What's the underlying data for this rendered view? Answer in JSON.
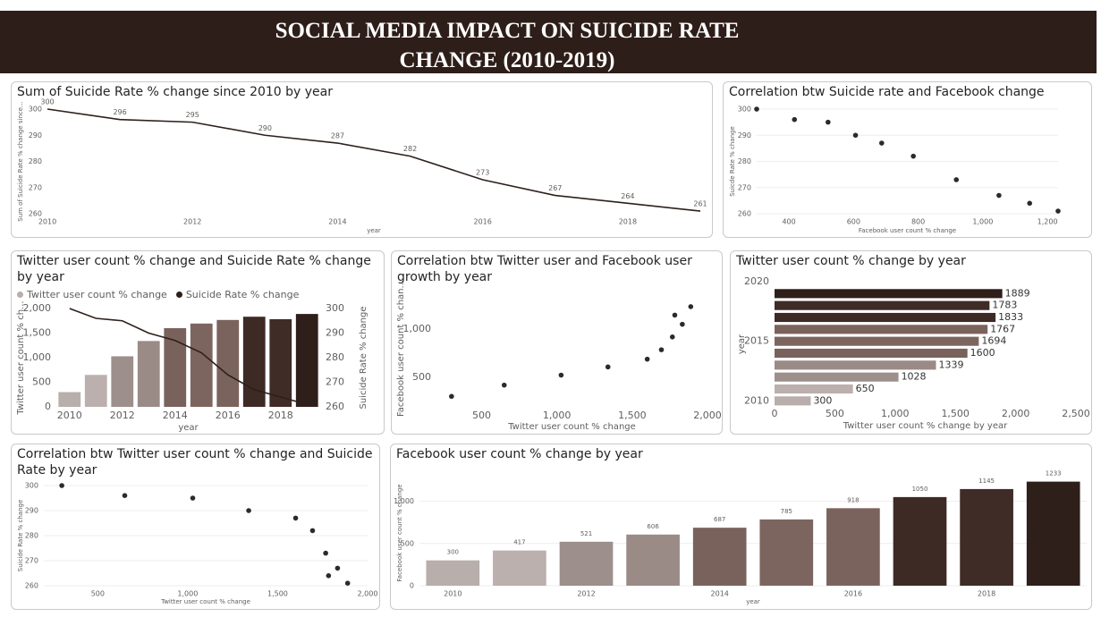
{
  "header": {
    "title": "SOCIAL MEDIA IMPACT ON SUICIDE RATE CHANGE (2010-2019)"
  },
  "chart_data": [
    {
      "type": "line",
      "title": "Sum of Suicide Rate % change since 2010 by year",
      "x": [
        2010,
        2011,
        2012,
        2013,
        2014,
        2015,
        2016,
        2017,
        2018,
        2019
      ],
      "series": [
        {
          "name": "Sum of Suicide Rate % change since 2010",
          "color": "#2e1f1b",
          "values": [
            300,
            296,
            295,
            290,
            287,
            282,
            273,
            267,
            264,
            261
          ]
        }
      ],
      "xlim": [
        2010,
        2019
      ],
      "xticks": [
        2010,
        2012,
        2014,
        2016,
        2018
      ],
      "ylim": [
        260,
        300
      ],
      "yticks": [
        260,
        270,
        280,
        290,
        300
      ],
      "xlabel": "year",
      "ylabel": "Sum of Suicide Rate % change since...",
      "data_labels": true,
      "grid": false
    },
    {
      "type": "scatter",
      "title": "Correlation btw Suicide rate and Facebook change",
      "x": [
        300,
        417,
        521,
        606,
        687,
        785,
        918,
        1050,
        1145,
        1233
      ],
      "series": [
        {
          "name": "Suicde Rate % change",
          "color": "#2b2b2b",
          "values": [
            300,
            296,
            295,
            290,
            287,
            282,
            273,
            267,
            264,
            261
          ]
        }
      ],
      "xlim": [
        300,
        1233
      ],
      "xticks": [
        400,
        600,
        800,
        {
          "value": 1000,
          "label": "1,000"
        },
        {
          "value": 1200,
          "label": "1,200"
        }
      ],
      "ylim": [
        260,
        300
      ],
      "yticks": [
        260,
        270,
        280,
        290,
        300
      ],
      "xlabel": "Facebook user count % change",
      "ylabel": "Suicde Rate % change",
      "grid": true
    },
    {
      "type": "combo",
      "title": "Twitter user count % change and Suicide Rate % change by year",
      "x": [
        2010,
        2011,
        2012,
        2013,
        2014,
        2015,
        2016,
        2017,
        2018,
        2019
      ],
      "series": [
        {
          "name": "Twitter user count % change",
          "color": "#b8aeab",
          "colors": [
            "#b8aeab",
            "#bbb0ad",
            "#9d8f8b",
            "#9a8b87",
            "#7a625c",
            "#7d655f",
            "#7b635d",
            "#3d2a25",
            "#3f2c27",
            "#2e1f1b"
          ],
          "values": [
            300,
            650,
            1028,
            1339,
            1600,
            1694,
            1767,
            1833,
            1783,
            1889
          ]
        },
        {
          "name": "Suicide Rate % change",
          "color": "#2e1f1b",
          "axis": "y2",
          "values": [
            300,
            296,
            295,
            290,
            287,
            282,
            273,
            267,
            264,
            261
          ]
        }
      ],
      "xlim": [
        2009.5,
        2019.5
      ],
      "xticks": [
        2010,
        2012,
        2014,
        2016,
        2018
      ],
      "ylim": [
        0,
        2000
      ],
      "yticks": [
        0,
        500,
        {
          "value": 1000,
          "label": "1,000"
        },
        {
          "value": 1500,
          "label": "1,500"
        },
        {
          "value": 2000,
          "label": "2,000"
        }
      ],
      "y2lim": [
        260,
        300
      ],
      "y2ticks": [
        260,
        270,
        280,
        290,
        300
      ],
      "xlabel": "year",
      "ylabel": "Twitter user count % ch...",
      "y2label": "Suicide Rate % change",
      "legend": "top-left",
      "grid": false
    },
    {
      "type": "scatter",
      "title": "Correlation btw Twitter user and Facebook user growth by year",
      "x": [
        300,
        650,
        1028,
        1339,
        1600,
        1694,
        1767,
        1833,
        1783,
        1889
      ],
      "series": [
        {
          "name": "Facebook user count % change",
          "color": "#2b2b2b",
          "values": [
            300,
            417,
            521,
            606,
            687,
            785,
            918,
            1050,
            1145,
            1233
          ]
        }
      ],
      "xlim": [
        200,
        2000
      ],
      "xticks": [
        500,
        {
          "value": 1000,
          "label": "1,000"
        },
        {
          "value": 1500,
          "label": "1,500"
        },
        {
          "value": 2000,
          "label": "2,000"
        }
      ],
      "ylim": [
        200,
        1400
      ],
      "yticks": [
        500,
        {
          "value": 1000,
          "label": "1,000"
        }
      ],
      "xlabel": "Twitter user count % change",
      "ylabel": "Facebook user count % chan...",
      "grid": false
    },
    {
      "type": "bar",
      "orientation": "horizontal",
      "title": "Twitter user count % change by year",
      "y": [
        2010,
        2011,
        2012,
        2013,
        2014,
        2015,
        2016,
        2017,
        2018,
        2019
      ],
      "colors": [
        "#b8aeab",
        "#bbb0ad",
        "#9d8f8b",
        "#9a8b87",
        "#7a625c",
        "#7d655f",
        "#7b635d",
        "#3d2a25",
        "#3f2c27",
        "#2e1f1b"
      ],
      "values": [
        300,
        650,
        1028,
        1339,
        1600,
        1694,
        1767,
        1833,
        1783,
        1889
      ],
      "xlim": [
        0,
        2500
      ],
      "xticks": [
        0,
        500,
        {
          "value": 1000,
          "label": "1,000"
        },
        {
          "value": 1500,
          "label": "1,500"
        },
        {
          "value": 2000,
          "label": "2,000"
        },
        {
          "value": 2500,
          "label": "2,500"
        }
      ],
      "ylim": [
        2009.5,
        2020
      ],
      "yticks": [
        2010,
        2015,
        2020
      ],
      "xlabel": "Twitter user count % change by year",
      "ylabel": "year",
      "data_labels": true,
      "grid": false
    },
    {
      "type": "scatter",
      "title": "Correlation btw Twitter user count % change and Suicide Rate by year",
      "x": [
        300,
        650,
        1028,
        1339,
        1600,
        1694,
        1767,
        1833,
        1783,
        1889
      ],
      "series": [
        {
          "name": "Suicide Rate % change",
          "color": "#2b2b2b",
          "values": [
            300,
            296,
            295,
            290,
            287,
            282,
            273,
            267,
            264,
            261
          ]
        }
      ],
      "xlim": [
        200,
        2000
      ],
      "xticks": [
        500,
        {
          "value": 1000,
          "label": "1,000"
        },
        {
          "value": 1500,
          "label": "1,500"
        },
        {
          "value": 2000,
          "label": "2,000"
        }
      ],
      "ylim": [
        260,
        300
      ],
      "yticks": [
        260,
        270,
        280,
        290,
        300
      ],
      "xlabel": "Twitter user count % change",
      "ylabel": "Suicide Rate % change",
      "grid": true
    },
    {
      "type": "bar",
      "title": "Facebook user count % change by year",
      "x": [
        2010,
        2011,
        2012,
        2013,
        2014,
        2015,
        2016,
        2017,
        2018,
        2019
      ],
      "colors": [
        "#b8aeab",
        "#bbb0ad",
        "#9d8f8b",
        "#9a8b87",
        "#7a625c",
        "#7d655f",
        "#7b635d",
        "#3d2a25",
        "#3f2c27",
        "#2e1f1b"
      ],
      "values": [
        300,
        417,
        521,
        606,
        687,
        785,
        918,
        1050,
        1145,
        1233
      ],
      "xlim": [
        2009.5,
        2019.5
      ],
      "xticks": [
        2010,
        2012,
        2014,
        2016,
        2018
      ],
      "ylim": [
        0,
        1250
      ],
      "yticks": [
        0,
        500,
        {
          "value": 1000,
          "label": "1,000"
        }
      ],
      "xlabel": "year",
      "ylabel": "Facebook user count % change",
      "data_labels": true,
      "grid": true
    }
  ]
}
